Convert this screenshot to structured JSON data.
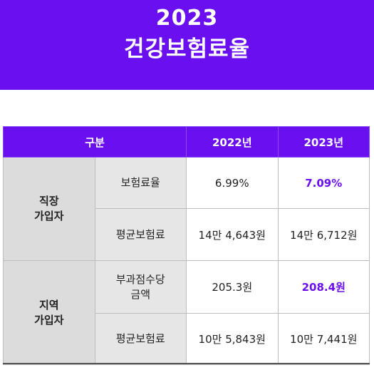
{
  "header": {
    "year": "2023",
    "title": "건강보험료율"
  },
  "table": {
    "columns": [
      "구분",
      "2022년",
      "2023년"
    ],
    "groups": [
      {
        "label": "직장\n가입자",
        "rows": [
          {
            "item": "보험료율",
            "y2022": "6.99%",
            "y2023": "7.09%"
          },
          {
            "item": "평균보험료",
            "y2022": "14만 4,643원",
            "y2023": "14만 6,712원"
          }
        ]
      },
      {
        "label": "지역\n가입자",
        "rows": [
          {
            "item": "부과점수당\n금액",
            "y2022": "205.3원",
            "y2023": "208.4원"
          },
          {
            "item": "평균보험료",
            "y2022": "10만 5,843원",
            "y2023": "10만 7,441원"
          }
        ]
      }
    ]
  },
  "colors": {
    "accent": "#6a0ff0",
    "label_bg": "#e6e6e6"
  }
}
